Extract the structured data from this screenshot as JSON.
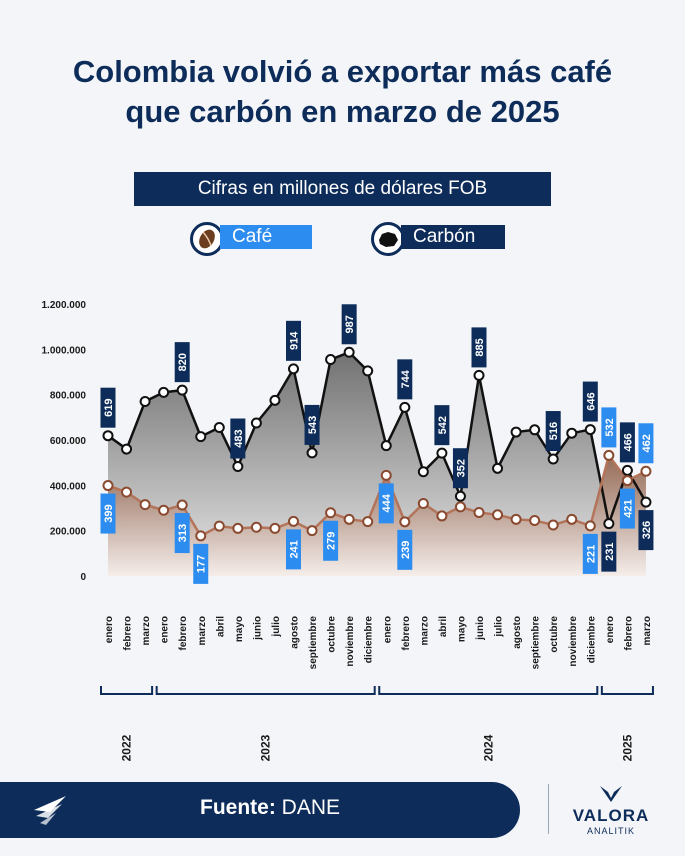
{
  "title_line1": "Colombia volvió a exportar más café",
  "title_line2": "que carbón en marzo de 2025",
  "footer": {
    "label": "Fuente:",
    "value": "DANE"
  },
  "brand": {
    "name": "VALORA",
    "sub": "ANALITIK"
  },
  "icons": {
    "cafe": "coffee-bean-icon",
    "carbon": "coal-icon",
    "logo": "valora-logo-icon"
  },
  "colors": {
    "navy": "#0d2c5a",
    "blue": "#2d8cf0",
    "cafe_line": "#b3745a",
    "carbon_line": "#111111"
  },
  "chart_data": {
    "type": "area",
    "title": "",
    "subtitle": "Cifras en millones de dólares FOB",
    "ylim": [
      0,
      1200000
    ],
    "yticks": [
      "0",
      "200.000",
      "400.000",
      "600.000",
      "800.000",
      "1.000.000",
      "1.200.000"
    ],
    "ytick_values": [
      0,
      200000,
      400000,
      600000,
      800000,
      1000000,
      1200000
    ],
    "legend_position": "top",
    "categories": [
      "enero",
      "febrero",
      "marzo",
      "enero",
      "febrero",
      "marzo",
      "abril",
      "mayo",
      "junio",
      "julio",
      "agosto",
      "septiembre",
      "octubre",
      "noviembre",
      "diciembre",
      "enero",
      "febrero",
      "marzo",
      "abril",
      "mayo",
      "junio",
      "julio",
      "agosto",
      "septiembre",
      "octubre",
      "noviembre",
      "diciembre",
      "enero",
      "febrero",
      "marzo"
    ],
    "years": [
      {
        "label": "2022",
        "count": 3
      },
      {
        "label": "2023",
        "count": 12
      },
      {
        "label": "2024",
        "count": 12
      },
      {
        "label": "2025",
        "count": 3
      }
    ],
    "series": [
      {
        "name": "Café",
        "values": [
          399000,
          370000,
          315000,
          290000,
          313000,
          177000,
          220000,
          210000,
          215000,
          210000,
          241000,
          200000,
          279000,
          250000,
          240000,
          444000,
          239000,
          320000,
          265000,
          305000,
          280000,
          270000,
          250000,
          245000,
          225000,
          250000,
          221000,
          532000,
          421000,
          462000
        ],
        "labels": [
          "399",
          null,
          null,
          null,
          "313",
          "177",
          null,
          null,
          null,
          null,
          "241",
          null,
          "279",
          null,
          null,
          "444",
          "239",
          null,
          null,
          null,
          null,
          null,
          null,
          null,
          null,
          null,
          "221",
          "532",
          "421",
          "462"
        ]
      },
      {
        "name": "Carbón",
        "values": [
          619000,
          560000,
          770000,
          810000,
          820000,
          615000,
          655000,
          483000,
          675000,
          775000,
          914000,
          543000,
          955000,
          987000,
          905000,
          575000,
          744000,
          460000,
          542000,
          352000,
          885000,
          475000,
          635000,
          645000,
          516000,
          630000,
          646000,
          231000,
          466000,
          326000
        ],
        "labels": [
          "619",
          null,
          null,
          null,
          "820",
          null,
          null,
          "483",
          null,
          null,
          "914",
          "543",
          null,
          "987",
          null,
          null,
          "744",
          null,
          "542",
          "352",
          "885",
          null,
          null,
          null,
          "516",
          null,
          "646",
          "231",
          "466",
          "326"
        ]
      }
    ]
  }
}
